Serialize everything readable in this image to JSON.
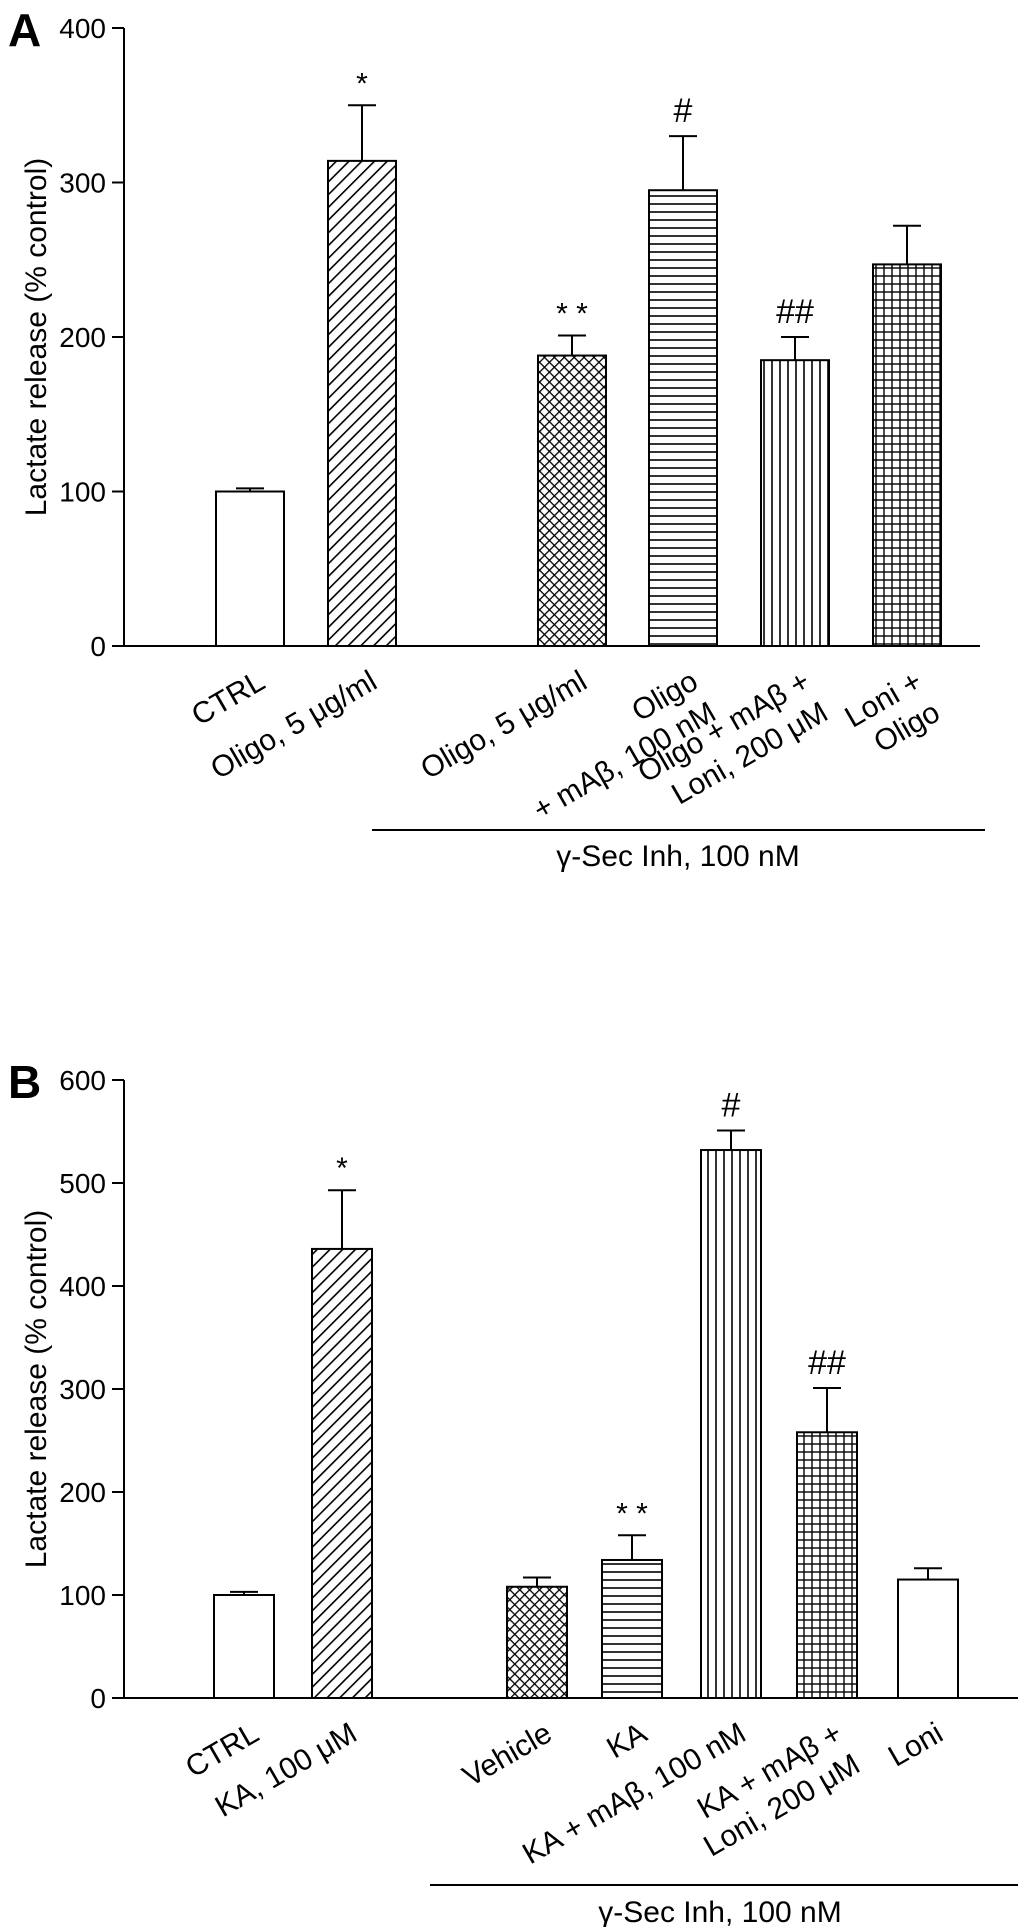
{
  "chart_data": [
    {
      "type": "bar",
      "panel_label": "A",
      "ylabel": "Lactate release (% control)",
      "ylim": [
        0,
        400
      ],
      "yticks": [
        0,
        100,
        200,
        300,
        400
      ],
      "group_label": "γ-Sec Inh, 100 nM",
      "bars": [
        {
          "label_lines": [
            "CTRL"
          ],
          "value": 100,
          "error": 2,
          "annotation": "",
          "pattern": "none"
        },
        {
          "label_lines": [
            "Oligo, 5 μg/ml"
          ],
          "value": 314,
          "error": 36,
          "annotation": "*",
          "pattern": "diagonal"
        },
        {
          "label_lines": [
            "Oligo, 5 μg/ml"
          ],
          "value": 188,
          "error": 13,
          "annotation": "* *",
          "pattern": "crosshatch-diag"
        },
        {
          "label_lines": [
            "Oligo",
            "+ mAβ, 100 nM"
          ],
          "value": 295,
          "error": 35,
          "annotation": "#",
          "pattern": "horizontal"
        },
        {
          "label_lines": [
            "Oligo + mAβ +",
            "Loni, 200 μM"
          ],
          "value": 185,
          "error": 15,
          "annotation": "##",
          "pattern": "vertical"
        },
        {
          "label_lines": [
            "Loni +",
            "Oligo"
          ],
          "value": 247,
          "error": 25,
          "annotation": "",
          "pattern": "grid"
        }
      ]
    },
    {
      "type": "bar",
      "panel_label": "B",
      "ylabel": "Lactate release (% control)",
      "ylim": [
        0,
        600
      ],
      "yticks": [
        0,
        100,
        200,
        300,
        400,
        500,
        600
      ],
      "group_label": "γ-Sec Inh, 100 nM",
      "bars": [
        {
          "label_lines": [
            "CTRL"
          ],
          "value": 100,
          "error": 3,
          "annotation": "",
          "pattern": "none"
        },
        {
          "label_lines": [
            "KA, 100 μM"
          ],
          "value": 436,
          "error": 57,
          "annotation": "*",
          "pattern": "diagonal"
        },
        {
          "label_lines": [
            "Vehicle"
          ],
          "value": 108,
          "error": 9,
          "annotation": "",
          "pattern": "crosshatch-diag"
        },
        {
          "label_lines": [
            "KA"
          ],
          "value": 134,
          "error": 24,
          "annotation": "* *",
          "pattern": "horizontal"
        },
        {
          "label_lines": [
            "KA + mAβ, 100 nM"
          ],
          "value": 532,
          "error": 19,
          "annotation": "#",
          "pattern": "vertical"
        },
        {
          "label_lines": [
            "KA + mAβ +",
            "Loni, 200 μM"
          ],
          "value": 258,
          "error": 43,
          "annotation": "##",
          "pattern": "grid"
        },
        {
          "label_lines": [
            "Loni"
          ],
          "value": 115,
          "error": 11,
          "annotation": "",
          "pattern": "none"
        }
      ]
    }
  ]
}
